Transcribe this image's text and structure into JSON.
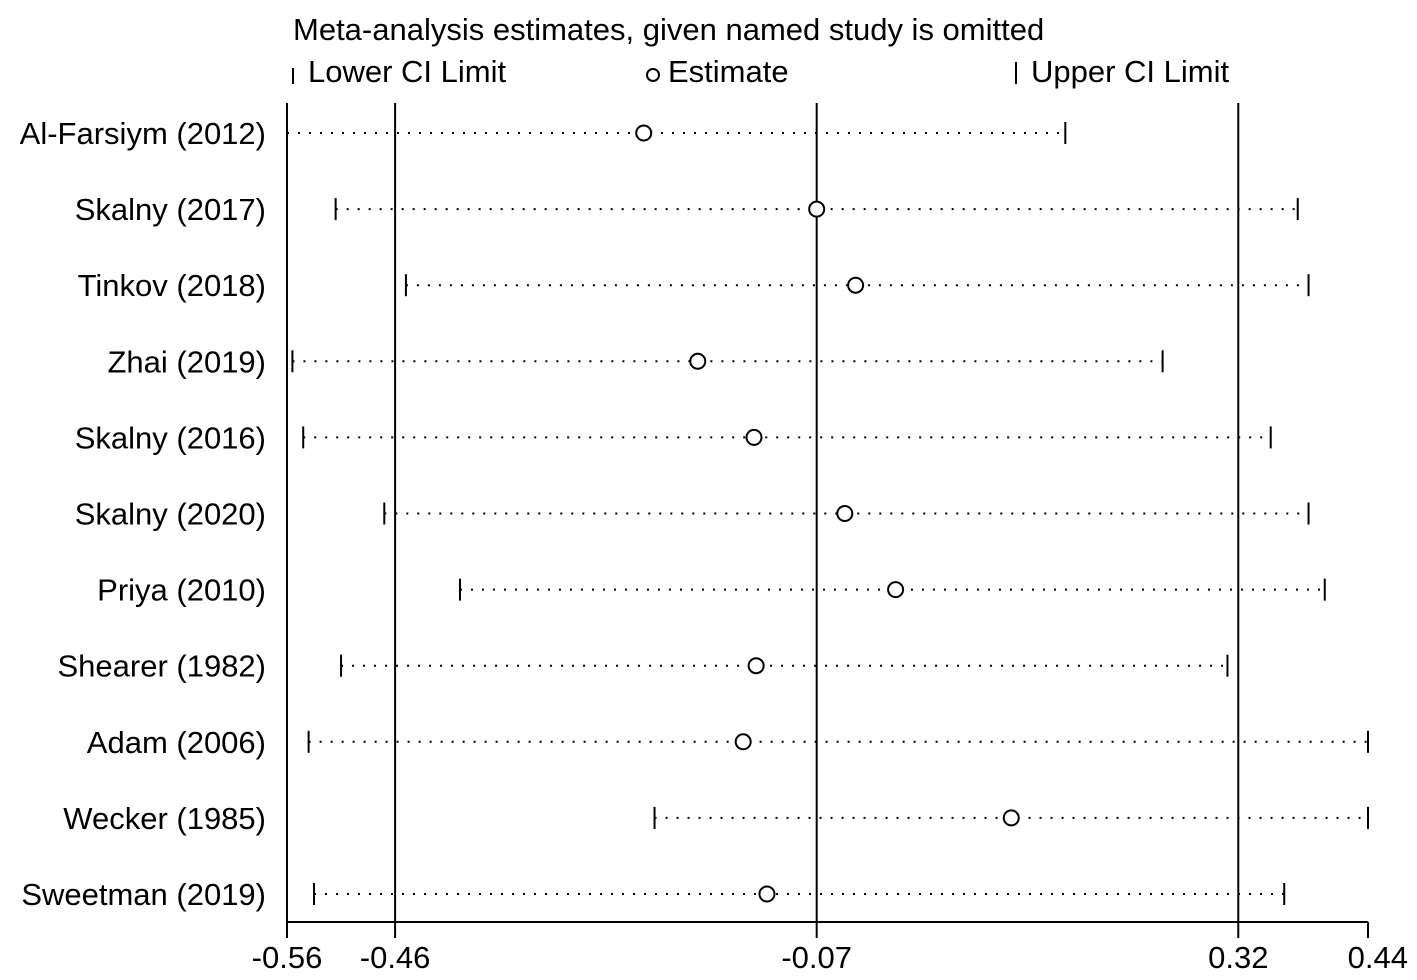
{
  "chart_data": {
    "type": "scatter",
    "title": "Meta-analysis estimates, given named study is omitted",
    "legend": {
      "placement": "top",
      "entries": [
        {
          "name": "Lower CI Limit",
          "marker": "tick"
        },
        {
          "name": "Estimate",
          "marker": "circle"
        },
        {
          "name": "Upper CI Limit",
          "marker": "tick"
        }
      ]
    },
    "xlim": [
      -0.56,
      0.44
    ],
    "xticks": [
      -0.56,
      -0.46,
      -0.07,
      0.32,
      0.44
    ],
    "xtick_labels": [
      "-0.56",
      "-0.46",
      "-0.07",
      "0.32",
      "0.44"
    ],
    "reference_lines": [
      -0.46,
      -0.07,
      0.32
    ],
    "grid": false,
    "studies": [
      {
        "label": "Al-Farsiym (2012)",
        "lower": -0.56,
        "estimate": -0.23,
        "upper": 0.16
      },
      {
        "label": "Skalny (2017)",
        "lower": -0.515,
        "estimate": -0.07,
        "upper": 0.375
      },
      {
        "label": "Tinkov (2018)",
        "lower": -0.45,
        "estimate": -0.034,
        "upper": 0.385
      },
      {
        "label": "Zhai (2019)",
        "lower": -0.555,
        "estimate": -0.18,
        "upper": 0.25
      },
      {
        "label": "Skalny (2016)",
        "lower": -0.545,
        "estimate": -0.128,
        "upper": 0.35
      },
      {
        "label": "Skalny (2020)",
        "lower": -0.47,
        "estimate": -0.044,
        "upper": 0.385
      },
      {
        "label": "Priya (2010)",
        "lower": -0.4,
        "estimate": 0.003,
        "upper": 0.4
      },
      {
        "label": "Shearer (1982)",
        "lower": -0.51,
        "estimate": -0.126,
        "upper": 0.31
      },
      {
        "label": "Adam (2006)",
        "lower": -0.54,
        "estimate": -0.138,
        "upper": 0.44
      },
      {
        "label": "Wecker (1985)",
        "lower": -0.22,
        "estimate": 0.11,
        "upper": 0.44
      },
      {
        "label": "Sweetman (2019)",
        "lower": -0.535,
        "estimate": -0.116,
        "upper": 0.3625
      }
    ]
  }
}
